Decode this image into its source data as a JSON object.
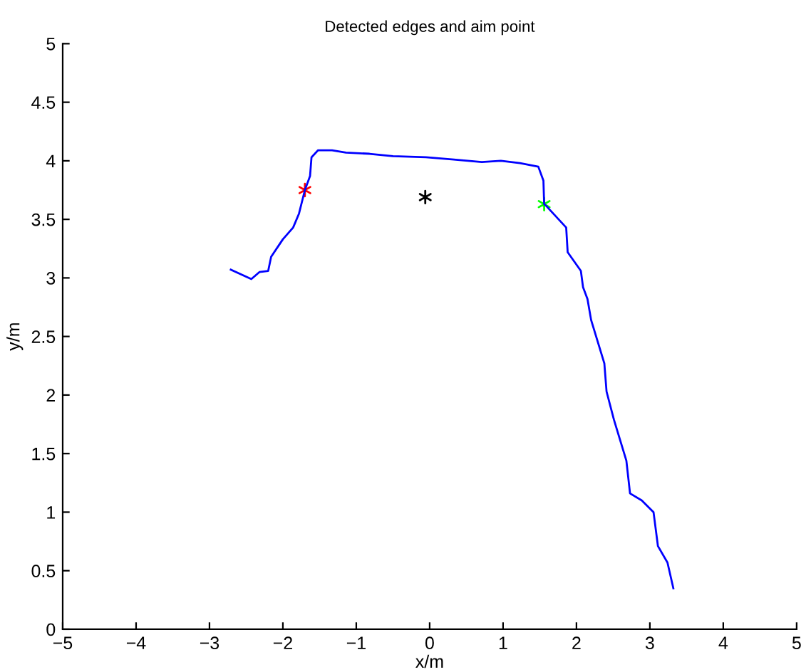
{
  "chart_data": {
    "type": "line",
    "title": "Detected edges and aim point",
    "xlabel": "x/m",
    "ylabel": "y/m",
    "xlim": [
      -5,
      5
    ],
    "xticks": [
      -5,
      -4,
      -3,
      -2,
      -1,
      0,
      1,
      2,
      3,
      4,
      5
    ],
    "ylim": [
      0,
      5
    ],
    "yticks": [
      0,
      0.5,
      1,
      1.5,
      2,
      2.5,
      3,
      3.5,
      4,
      4.5,
      5
    ],
    "grid": false,
    "series": [
      {
        "color": "#0000ff",
        "marker": "none",
        "line_style": "solid",
        "x": [
          -2.71,
          -2.43,
          -2.32,
          -2.2,
          -2.16,
          -2.0,
          -1.86,
          -1.78,
          -1.7,
          -1.63,
          -1.61,
          -1.52,
          -1.33,
          -1.14,
          -0.82,
          -0.5,
          -0.05,
          0.33,
          0.71,
          0.97,
          1.23,
          1.48,
          1.55,
          1.56,
          1.58,
          1.86,
          1.88,
          2.06,
          2.09,
          2.15,
          2.2,
          2.38,
          2.41,
          2.51,
          2.68,
          2.73,
          2.89,
          3.05,
          3.11,
          3.24,
          3.32
        ],
        "values": [
          3.07,
          2.99,
          3.05,
          3.06,
          3.18,
          3.33,
          3.43,
          3.55,
          3.75,
          3.87,
          4.03,
          4.09,
          4.09,
          4.07,
          4.06,
          4.04,
          4.03,
          4.01,
          3.99,
          4.0,
          3.98,
          3.95,
          3.83,
          3.63,
          3.62,
          3.43,
          3.22,
          3.06,
          2.92,
          2.82,
          2.64,
          2.27,
          2.03,
          1.79,
          1.44,
          1.16,
          1.1,
          1.0,
          0.71,
          0.57,
          0.35
        ]
      },
      {
        "type": "scatter",
        "color": "#ff0000",
        "marker": "cross",
        "x": [
          -1.7
        ],
        "values": [
          3.75
        ]
      },
      {
        "type": "scatter",
        "color": "#00ff00",
        "marker": "cross",
        "x": [
          1.56
        ],
        "values": [
          3.63
        ]
      },
      {
        "type": "scatter",
        "color": "#000000",
        "marker": "cross",
        "x": [
          -0.06
        ],
        "values": [
          3.69
        ]
      }
    ]
  }
}
